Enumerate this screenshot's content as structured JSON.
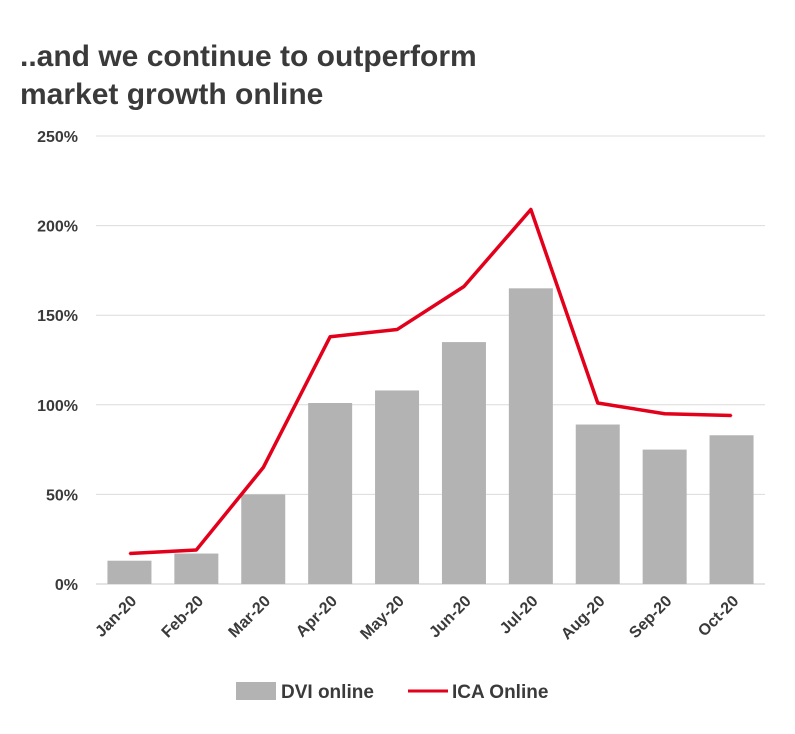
{
  "title_lines": [
    "..and we continue to outperform",
    "market growth online"
  ],
  "chart_data": {
    "type": "bar",
    "categories": [
      "Jan-20",
      "Feb-20",
      "Mar-20",
      "Apr-20",
      "May-20",
      "Jun-20",
      "Jul-20",
      "Aug-20",
      "Sep-20",
      "Oct-20"
    ],
    "series": [
      {
        "name": "DVI online",
        "type": "bar",
        "color": "#b3b3b3",
        "values": [
          13,
          17,
          50,
          101,
          108,
          135,
          165,
          89,
          75,
          83
        ]
      },
      {
        "name": "ICA Online",
        "type": "line",
        "color": "#e3001b",
        "values": [
          17,
          19,
          65,
          138,
          142,
          166,
          209,
          101,
          95,
          94
        ]
      }
    ],
    "yticks": [
      "0%",
      "50%",
      "100%",
      "150%",
      "200%",
      "250%"
    ],
    "ylim": [
      0,
      250
    ],
    "grid": true,
    "legend": "bottom"
  }
}
